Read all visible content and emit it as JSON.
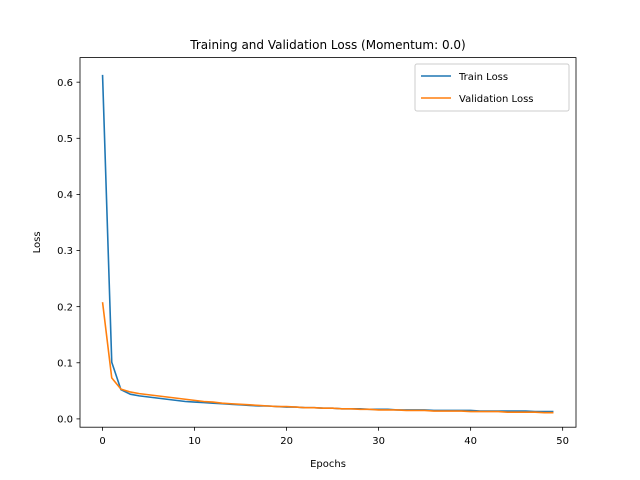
{
  "chart_data": {
    "type": "line",
    "title": "Training and Validation Loss (Momentum: 0.0)",
    "xlabel": "Epochs",
    "ylabel": "Loss",
    "xlim": [
      -2.45,
      51.45
    ],
    "ylim": [
      -0.0148,
      0.6438
    ],
    "xticks": [
      0,
      10,
      20,
      30,
      40,
      50
    ],
    "yticks": [
      0.0,
      0.1,
      0.2,
      0.3,
      0.4,
      0.5,
      0.6
    ],
    "ytick_labels": [
      "0.0",
      "0.1",
      "0.2",
      "0.3",
      "0.4",
      "0.5",
      "0.6"
    ],
    "grid": false,
    "legend_position": "top-right",
    "x": [
      0,
      1,
      2,
      3,
      4,
      5,
      6,
      7,
      8,
      9,
      10,
      11,
      12,
      13,
      14,
      15,
      16,
      17,
      18,
      19,
      20,
      21,
      22,
      23,
      24,
      25,
      26,
      27,
      28,
      29,
      30,
      31,
      32,
      33,
      34,
      35,
      36,
      37,
      38,
      39,
      40,
      41,
      42,
      43,
      44,
      45,
      46,
      47,
      48,
      49
    ],
    "series": [
      {
        "name": "Train Loss",
        "color": "#1f77b4",
        "values": [
          0.613,
          0.101,
          0.052,
          0.044,
          0.041,
          0.039,
          0.037,
          0.035,
          0.033,
          0.031,
          0.03,
          0.029,
          0.028,
          0.027,
          0.026,
          0.025,
          0.024,
          0.023,
          0.023,
          0.022,
          0.021,
          0.021,
          0.02,
          0.02,
          0.019,
          0.019,
          0.018,
          0.018,
          0.018,
          0.017,
          0.017,
          0.017,
          0.016,
          0.016,
          0.016,
          0.016,
          0.015,
          0.015,
          0.015,
          0.015,
          0.015,
          0.014,
          0.014,
          0.014,
          0.014,
          0.014,
          0.014,
          0.013,
          0.013,
          0.013
        ]
      },
      {
        "name": "Validation Loss",
        "color": "#ff7f0e",
        "values": [
          0.208,
          0.073,
          0.053,
          0.048,
          0.045,
          0.043,
          0.041,
          0.039,
          0.037,
          0.035,
          0.033,
          0.031,
          0.03,
          0.028,
          0.027,
          0.026,
          0.025,
          0.024,
          0.023,
          0.022,
          0.022,
          0.021,
          0.02,
          0.02,
          0.019,
          0.019,
          0.018,
          0.018,
          0.017,
          0.017,
          0.016,
          0.016,
          0.016,
          0.015,
          0.015,
          0.015,
          0.014,
          0.014,
          0.014,
          0.014,
          0.013,
          0.013,
          0.013,
          0.013,
          0.012,
          0.012,
          0.012,
          0.012,
          0.011,
          0.011
        ]
      }
    ]
  }
}
